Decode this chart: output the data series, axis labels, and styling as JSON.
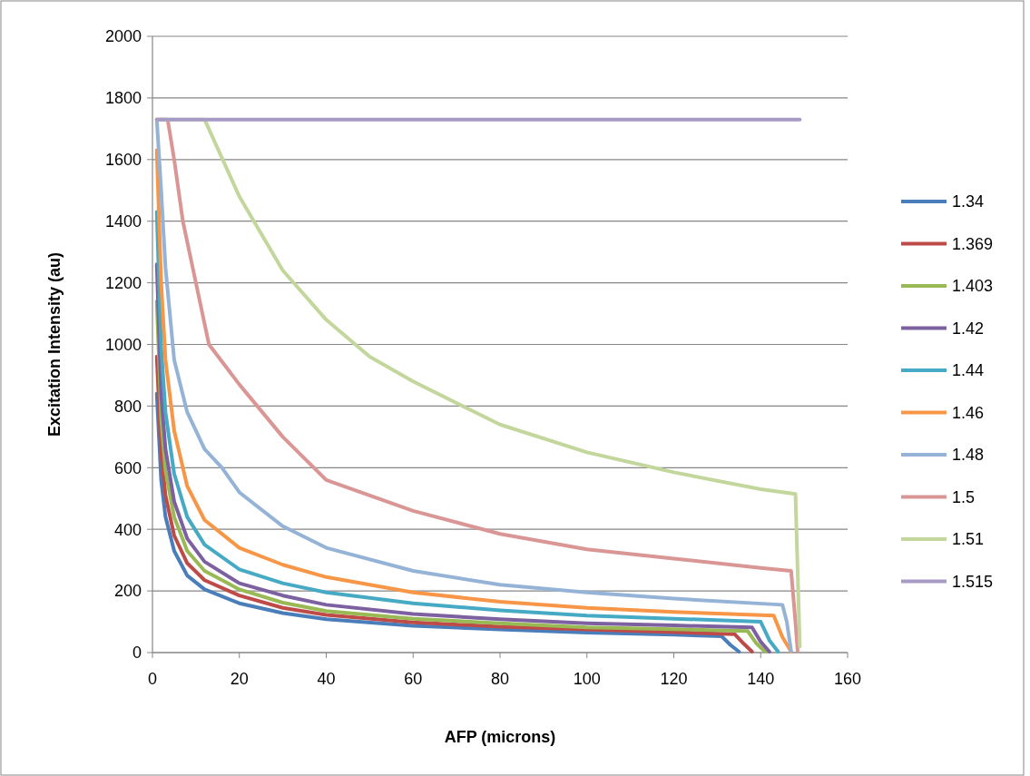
{
  "chart_data": {
    "type": "line",
    "xlabel": "AFP (microns)",
    "ylabel": "Excitation Intensity (au)",
    "xlim": [
      0,
      160
    ],
    "xticks": [
      0,
      20,
      40,
      60,
      80,
      100,
      120,
      140,
      160
    ],
    "ylim": [
      0,
      2000
    ],
    "yticks": [
      0,
      200,
      400,
      600,
      800,
      1000,
      1200,
      1400,
      1600,
      1800,
      2000
    ],
    "grid": "y",
    "legend": "right",
    "marker": "none",
    "line_style": "solid",
    "series": [
      {
        "name": "1.34",
        "color": "#4a7ebb",
        "x": [
          1,
          2,
          3,
          5,
          8,
          12,
          20,
          30,
          40,
          60,
          80,
          100,
          120,
          131,
          133,
          135
        ],
        "values": [
          840,
          560,
          440,
          330,
          250,
          205,
          160,
          128,
          108,
          87,
          75,
          65,
          58,
          53,
          25,
          3
        ]
      },
      {
        "name": "1.369",
        "color": "#be4b48",
        "x": [
          1,
          2,
          3,
          5,
          8,
          12,
          20,
          30,
          40,
          60,
          80,
          100,
          120,
          134,
          136,
          138
        ],
        "values": [
          960,
          650,
          510,
          380,
          290,
          235,
          185,
          145,
          122,
          98,
          84,
          75,
          66,
          60,
          30,
          3
        ]
      },
      {
        "name": "1.403",
        "color": "#98b954",
        "x": [
          1,
          2,
          3,
          5,
          8,
          12,
          20,
          30,
          40,
          60,
          80,
          100,
          120,
          137,
          139,
          141
        ],
        "values": [
          1140,
          760,
          590,
          440,
          330,
          265,
          205,
          162,
          135,
          110,
          95,
          82,
          76,
          70,
          30,
          3
        ]
      },
      {
        "name": "1.42",
        "color": "#7d60a0",
        "x": [
          1,
          2,
          3,
          5,
          8,
          12,
          20,
          30,
          40,
          60,
          80,
          100,
          120,
          138,
          140,
          142
        ],
        "values": [
          1260,
          840,
          660,
          490,
          370,
          295,
          225,
          185,
          155,
          125,
          108,
          95,
          88,
          82,
          35,
          3
        ]
      },
      {
        "name": "1.44",
        "color": "#46aac5",
        "x": [
          1,
          2,
          3,
          5,
          8,
          12,
          20,
          30,
          40,
          60,
          80,
          100,
          120,
          140,
          142,
          144
        ],
        "values": [
          1430,
          990,
          780,
          580,
          440,
          350,
          270,
          225,
          195,
          160,
          137,
          120,
          110,
          100,
          40,
          3
        ]
      },
      {
        "name": "1.46",
        "color": "#f79646",
        "x": [
          1,
          2,
          3,
          5,
          8,
          12,
          20,
          30,
          40,
          60,
          80,
          100,
          120,
          143,
          145,
          147
        ],
        "values": [
          1630,
          1200,
          950,
          720,
          540,
          430,
          340,
          285,
          245,
          195,
          165,
          145,
          132,
          120,
          50,
          3
        ]
      },
      {
        "name": "1.48",
        "color": "#95b3d7",
        "x": [
          1,
          2,
          3,
          5,
          8,
          12,
          16,
          20,
          30,
          40,
          60,
          80,
          100,
          120,
          145,
          146,
          147
        ],
        "values": [
          1730,
          1500,
          1250,
          950,
          780,
          660,
          600,
          520,
          410,
          340,
          265,
          220,
          195,
          175,
          155,
          100,
          5
        ]
      },
      {
        "name": "1.5",
        "color": "#d99694",
        "x": [
          1,
          3.5,
          5,
          7,
          10,
          13,
          20,
          30,
          40,
          60,
          80,
          100,
          120,
          140,
          147,
          148,
          148.5
        ],
        "values": [
          1730,
          1730,
          1600,
          1400,
          1200,
          1000,
          870,
          700,
          560,
          460,
          385,
          335,
          305,
          275,
          265,
          100,
          5
        ]
      },
      {
        "name": "1.51",
        "color": "#c3d69b",
        "x": [
          1,
          12,
          20,
          30,
          40,
          50,
          60,
          80,
          100,
          120,
          140,
          148,
          149
        ],
        "values": [
          1730,
          1730,
          1480,
          1240,
          1080,
          960,
          880,
          740,
          650,
          585,
          530,
          515,
          20
        ]
      },
      {
        "name": "1.515",
        "color": "#a89ac6",
        "x": [
          1,
          149
        ],
        "values": [
          1730,
          1730
        ]
      }
    ]
  }
}
